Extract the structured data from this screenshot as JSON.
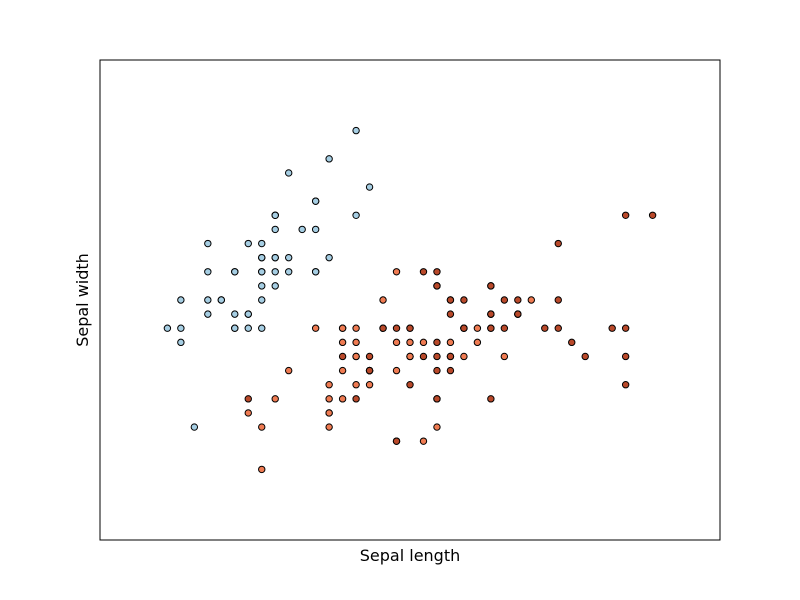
{
  "chart_data": {
    "type": "scatter",
    "xlabel": "Sepal length",
    "ylabel": "Sepal width",
    "xlim": [
      3.8,
      8.4
    ],
    "ylim": [
      1.5,
      4.9
    ],
    "series": [
      {
        "color": "#a6cee3",
        "x": [
          5.1,
          4.9,
          4.7,
          4.6,
          5.0,
          5.4,
          4.6,
          5.0,
          4.4,
          4.9,
          5.4,
          4.8,
          4.8,
          4.3,
          5.8,
          5.7,
          5.4,
          5.1,
          5.7,
          5.1,
          5.4,
          5.1,
          4.6,
          5.1,
          4.8,
          5.0,
          5.0,
          5.2,
          5.2,
          4.7,
          4.8,
          5.4,
          5.2,
          5.5,
          4.9,
          5.0,
          5.5,
          4.9,
          4.4,
          5.1,
          5.0,
          4.5,
          4.4,
          5.0,
          5.1,
          4.8,
          5.1,
          4.6,
          5.3,
          5.0
        ],
        "values": [
          3.5,
          3.0,
          3.2,
          3.1,
          3.6,
          3.9,
          3.4,
          3.4,
          2.9,
          3.1,
          3.7,
          3.4,
          3.0,
          3.0,
          4.0,
          4.4,
          3.9,
          3.5,
          3.8,
          3.8,
          3.4,
          3.7,
          3.6,
          3.3,
          3.4,
          3.0,
          3.4,
          3.5,
          3.4,
          3.2,
          3.1,
          3.4,
          4.1,
          4.2,
          3.1,
          3.2,
          3.5,
          3.6,
          3.0,
          3.4,
          3.5,
          2.3,
          3.2,
          3.5,
          3.8,
          3.0,
          3.8,
          3.2,
          3.7,
          3.3
        ]
      },
      {
        "color": "#ef7b52",
        "x": [
          7.0,
          6.4,
          6.9,
          5.5,
          6.5,
          5.7,
          6.3,
          4.9,
          6.6,
          5.2,
          5.0,
          5.9,
          6.0,
          6.1,
          5.6,
          6.7,
          5.6,
          5.8,
          6.2,
          5.6,
          5.9,
          6.1,
          6.3,
          6.1,
          6.4,
          6.6,
          6.8,
          6.7,
          6.0,
          5.7,
          5.5,
          5.5,
          5.8,
          6.0,
          5.4,
          6.0,
          6.7,
          6.3,
          5.6,
          5.5,
          5.5,
          6.1,
          5.8,
          5.0,
          5.6,
          5.7,
          5.7,
          6.2,
          5.1,
          5.7
        ],
        "values": [
          3.2,
          3.2,
          3.1,
          2.3,
          2.8,
          2.8,
          3.3,
          2.4,
          2.9,
          2.7,
          2.0,
          3.0,
          2.2,
          2.9,
          2.9,
          3.1,
          3.0,
          2.7,
          2.2,
          2.5,
          3.2,
          2.8,
          2.5,
          2.8,
          2.9,
          3.0,
          2.8,
          3.0,
          2.9,
          2.6,
          2.4,
          2.4,
          2.7,
          2.7,
          3.0,
          3.4,
          3.1,
          2.3,
          3.0,
          2.5,
          2.6,
          3.0,
          2.6,
          2.3,
          2.7,
          3.0,
          2.9,
          2.9,
          2.5,
          2.8
        ]
      },
      {
        "color": "#b9492a",
        "x": [
          6.3,
          5.8,
          7.1,
          6.3,
          6.5,
          7.6,
          4.9,
          7.3,
          6.7,
          7.2,
          6.5,
          6.4,
          6.8,
          5.7,
          5.8,
          6.4,
          6.5,
          7.7,
          7.7,
          6.0,
          6.9,
          5.6,
          7.7,
          6.3,
          6.7,
          7.2,
          6.2,
          6.1,
          6.4,
          7.2,
          7.4,
          7.9,
          6.4,
          6.3,
          6.1,
          7.7,
          6.3,
          6.4,
          6.0,
          6.9,
          6.7,
          6.9,
          5.8,
          6.8,
          6.7,
          6.7,
          6.3,
          6.5,
          6.2,
          5.9
        ],
        "values": [
          3.3,
          2.7,
          3.0,
          2.9,
          3.0,
          3.0,
          2.5,
          2.9,
          2.5,
          3.6,
          3.2,
          2.7,
          3.0,
          2.5,
          2.8,
          3.2,
          3.0,
          3.8,
          2.6,
          2.2,
          3.2,
          2.8,
          2.8,
          2.7,
          3.3,
          3.2,
          2.8,
          3.0,
          2.8,
          3.0,
          2.8,
          3.8,
          2.8,
          2.8,
          2.6,
          3.0,
          3.4,
          3.1,
          3.0,
          3.1,
          3.1,
          3.1,
          2.7,
          3.2,
          3.3,
          3.0,
          2.5,
          3.0,
          3.4,
          3.0
        ]
      }
    ]
  }
}
